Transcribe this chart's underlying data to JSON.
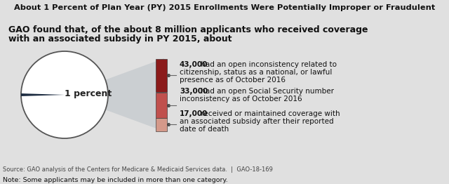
{
  "title": "About 1 Percent of Plan Year (PY) 2015 Enrollments Were Potentially Improper or Fraudulent",
  "subtitle_line1": "GAO found that, of the about 8 million applicants who received coverage",
  "subtitle_line2": "with an associated subsidy in PY 2015, about",
  "pie_label": "1 percent",
  "pie_color_slice": "#1c2b40",
  "pie_color_rest": "#ffffff",
  "pie_edge_color": "#555555",
  "bar_colors": [
    "#8b1a1a",
    "#c0504d",
    "#d4998a"
  ],
  "bar_values": [
    43,
    33,
    17
  ],
  "bar_bold": [
    "43,000",
    "33,000",
    "17,000"
  ],
  "bar_texts": [
    [
      " had an open inconsistency related to",
      "citizenship, status as a national, or lawful",
      "presence as of October 2016"
    ],
    [
      " had an open Social Security number",
      "inconsistency as of October 2016"
    ],
    [
      " received or maintained coverage with",
      "an associated subsidy after their reported",
      "date of death"
    ]
  ],
  "source_text": "Source: GAO analysis of the Centers for Medicare & Medicaid Services data.  |  GAO-18-169",
  "note_text": "Note: Some applicants may be included in more than one category.",
  "bg_color": "#e0e0e0",
  "title_bg": "#ffffff",
  "content_bg": "#ffffff",
  "cone_color": "#c8ccd0",
  "text_color": "#111111",
  "source_color": "#444444"
}
